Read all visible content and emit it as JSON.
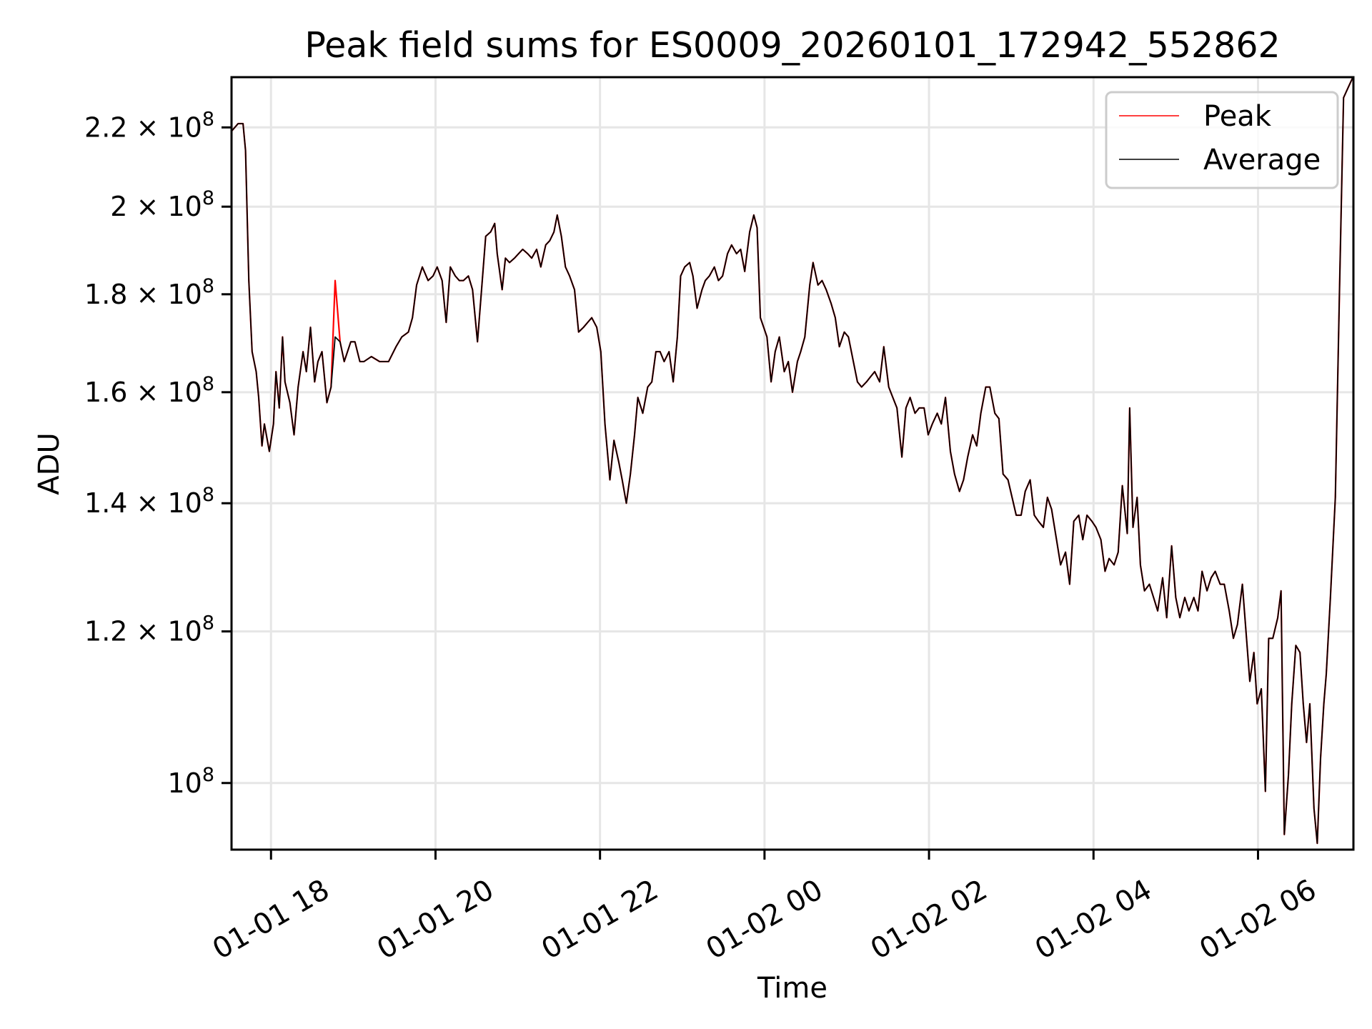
{
  "chart_data": {
    "type": "line",
    "title": "Peak field sums for ES0009_20260101_172942_552862",
    "xlabel": "Time",
    "ylabel": "ADU",
    "x_units": "hours since 01-01 00:00",
    "y_units": "1e8 ADU",
    "yscale": "log",
    "xlim": [
      17.52,
      31.16
    ],
    "ylim": [
      0.923,
      2.337
    ],
    "grid": true,
    "legend_position": "top-right",
    "xticks": [
      {
        "value": 18,
        "label": "01-01 18"
      },
      {
        "value": 20,
        "label": "01-01 20"
      },
      {
        "value": 22,
        "label": "01-01 22"
      },
      {
        "value": 24,
        "label": "01-02 00"
      },
      {
        "value": 26,
        "label": "01-02 02"
      },
      {
        "value": 28,
        "label": "01-02 04"
      },
      {
        "value": 30,
        "label": "01-02 06"
      }
    ],
    "yticks": [
      {
        "value": 1.0,
        "mantissa": "10",
        "exp": "8"
      },
      {
        "value": 1.2,
        "mantissa": "1.2 × 10",
        "exp": "8"
      },
      {
        "value": 1.4,
        "mantissa": "1.4 × 10",
        "exp": "8"
      },
      {
        "value": 1.6,
        "mantissa": "1.6 × 10",
        "exp": "8"
      },
      {
        "value": 1.8,
        "mantissa": "1.8 × 10",
        "exp": "8"
      },
      {
        "value": 2.0,
        "mantissa": "2 × 10",
        "exp": "8"
      },
      {
        "value": 2.2,
        "mantissa": "2.2 × 10",
        "exp": "8"
      }
    ],
    "x": [
      17.52,
      17.6,
      17.66,
      17.69,
      17.73,
      17.77,
      17.82,
      17.85,
      17.89,
      17.92,
      17.98,
      18.03,
      18.06,
      18.1,
      18.14,
      18.17,
      18.23,
      18.28,
      18.33,
      18.39,
      18.43,
      18.48,
      18.53,
      18.57,
      18.62,
      18.68,
      18.73,
      18.78,
      18.84,
      18.89,
      18.97,
      19.02,
      19.08,
      19.13,
      19.22,
      19.32,
      19.43,
      19.52,
      19.59,
      19.67,
      19.72,
      19.77,
      19.84,
      19.91,
      19.97,
      20.02,
      20.08,
      20.13,
      20.18,
      20.24,
      20.29,
      20.34,
      20.4,
      20.45,
      20.51,
      20.56,
      20.61,
      20.67,
      20.72,
      20.75,
      20.81,
      20.85,
      20.9,
      20.96,
      21.01,
      21.06,
      21.12,
      21.17,
      21.23,
      21.28,
      21.34,
      21.39,
      21.44,
      21.48,
      21.53,
      21.58,
      21.63,
      21.69,
      21.74,
      21.8,
      21.85,
      21.9,
      21.96,
      22.01,
      22.06,
      22.12,
      22.17,
      22.23,
      22.27,
      22.32,
      22.37,
      22.42,
      22.46,
      22.52,
      22.58,
      22.63,
      22.68,
      22.73,
      22.78,
      22.84,
      22.89,
      22.94,
      22.98,
      23.03,
      23.09,
      23.13,
      23.18,
      23.24,
      23.28,
      23.33,
      23.39,
      23.44,
      23.49,
      23.55,
      23.6,
      23.66,
      23.71,
      23.76,
      23.82,
      23.87,
      23.91,
      23.95,
      23.99,
      24.03,
      24.08,
      24.13,
      24.18,
      24.24,
      24.29,
      24.34,
      24.4,
      24.44,
      24.49,
      24.55,
      24.59,
      24.65,
      24.7,
      24.75,
      24.81,
      24.86,
      24.91,
      24.97,
      25.02,
      25.08,
      25.13,
      25.18,
      25.24,
      25.29,
      25.34,
      25.4,
      25.45,
      25.51,
      25.56,
      25.61,
      25.67,
      25.72,
      25.77,
      25.83,
      25.88,
      25.94,
      25.99,
      26.04,
      26.1,
      26.15,
      26.2,
      26.26,
      26.31,
      26.37,
      26.42,
      26.47,
      26.53,
      26.58,
      26.63,
      26.69,
      26.74,
      26.8,
      26.85,
      26.9,
      26.96,
      27.01,
      27.06,
      27.12,
      27.17,
      27.23,
      27.28,
      27.33,
      27.39,
      27.44,
      27.49,
      27.55,
      27.6,
      27.66,
      27.71,
      27.76,
      27.82,
      27.87,
      27.92,
      27.98,
      28.03,
      28.09,
      28.14,
      28.19,
      28.25,
      28.3,
      28.35,
      28.41,
      28.44,
      28.48,
      28.53,
      28.57,
      28.62,
      28.68,
      28.73,
      28.78,
      28.84,
      28.89,
      28.95,
      29.0,
      29.05,
      29.11,
      29.16,
      29.22,
      29.27,
      29.32,
      29.38,
      29.43,
      29.48,
      29.54,
      29.59,
      29.65,
      29.7,
      29.75,
      29.81,
      29.86,
      29.9,
      29.95,
      29.99,
      30.04,
      30.09,
      30.13,
      30.18,
      30.24,
      30.28,
      30.32,
      30.37,
      30.41,
      30.46,
      30.51,
      30.55,
      30.59,
      30.63,
      30.68,
      30.72,
      30.76,
      30.8,
      30.83,
      30.88,
      30.94,
      30.99,
      31.04,
      31.1,
      31.16
    ],
    "series": [
      {
        "name": "Peak",
        "color": "#ff0000",
        "values": [
          2.19,
          2.21,
          2.21,
          2.14,
          1.83,
          1.68,
          1.64,
          1.59,
          1.5,
          1.54,
          1.49,
          1.54,
          1.64,
          1.57,
          1.71,
          1.62,
          1.58,
          1.52,
          1.61,
          1.68,
          1.64,
          1.73,
          1.62,
          1.66,
          1.68,
          1.58,
          1.61,
          1.83,
          1.7,
          1.66,
          1.7,
          1.7,
          1.66,
          1.66,
          1.67,
          1.66,
          1.66,
          1.69,
          1.71,
          1.72,
          1.75,
          1.82,
          1.86,
          1.83,
          1.84,
          1.86,
          1.83,
          1.74,
          1.86,
          1.84,
          1.83,
          1.83,
          1.84,
          1.81,
          1.7,
          1.81,
          1.93,
          1.94,
          1.96,
          1.89,
          1.81,
          1.88,
          1.87,
          1.88,
          1.89,
          1.9,
          1.89,
          1.88,
          1.9,
          1.86,
          1.91,
          1.92,
          1.94,
          1.98,
          1.93,
          1.86,
          1.84,
          1.81,
          1.72,
          1.73,
          1.74,
          1.75,
          1.73,
          1.68,
          1.54,
          1.44,
          1.51,
          1.47,
          1.44,
          1.4,
          1.45,
          1.52,
          1.59,
          1.56,
          1.61,
          1.62,
          1.68,
          1.68,
          1.66,
          1.68,
          1.62,
          1.71,
          1.84,
          1.86,
          1.87,
          1.84,
          1.77,
          1.81,
          1.83,
          1.84,
          1.86,
          1.83,
          1.84,
          1.89,
          1.91,
          1.89,
          1.9,
          1.85,
          1.94,
          1.98,
          1.95,
          1.75,
          1.73,
          1.71,
          1.62,
          1.68,
          1.71,
          1.64,
          1.66,
          1.6,
          1.66,
          1.68,
          1.71,
          1.82,
          1.87,
          1.82,
          1.83,
          1.81,
          1.78,
          1.75,
          1.69,
          1.72,
          1.71,
          1.66,
          1.62,
          1.61,
          1.62,
          1.63,
          1.64,
          1.62,
          1.69,
          1.61,
          1.59,
          1.57,
          1.48,
          1.57,
          1.59,
          1.56,
          1.57,
          1.57,
          1.52,
          1.54,
          1.56,
          1.54,
          1.59,
          1.49,
          1.45,
          1.42,
          1.44,
          1.48,
          1.52,
          1.5,
          1.56,
          1.61,
          1.61,
          1.56,
          1.55,
          1.45,
          1.44,
          1.41,
          1.38,
          1.38,
          1.42,
          1.44,
          1.38,
          1.37,
          1.36,
          1.41,
          1.39,
          1.34,
          1.3,
          1.32,
          1.27,
          1.37,
          1.38,
          1.34,
          1.38,
          1.37,
          1.36,
          1.34,
          1.29,
          1.31,
          1.3,
          1.32,
          1.43,
          1.35,
          1.57,
          1.36,
          1.41,
          1.3,
          1.26,
          1.27,
          1.25,
          1.23,
          1.28,
          1.22,
          1.33,
          1.25,
          1.22,
          1.25,
          1.23,
          1.25,
          1.23,
          1.29,
          1.26,
          1.28,
          1.29,
          1.27,
          1.27,
          1.23,
          1.19,
          1.21,
          1.27,
          1.19,
          1.13,
          1.17,
          1.1,
          1.12,
          0.99,
          1.19,
          1.19,
          1.22,
          1.26,
          0.94,
          1.01,
          1.1,
          1.18,
          1.17,
          1.1,
          1.05,
          1.1,
          0.97,
          0.93,
          1.03,
          1.1,
          1.14,
          1.25,
          1.41,
          1.8,
          2.28,
          2.31,
          2.34
        ]
      },
      {
        "name": "Average",
        "color": "#000000",
        "values": [
          2.19,
          2.21,
          2.21,
          2.14,
          1.83,
          1.68,
          1.64,
          1.59,
          1.5,
          1.54,
          1.49,
          1.54,
          1.64,
          1.57,
          1.71,
          1.62,
          1.58,
          1.52,
          1.61,
          1.68,
          1.64,
          1.73,
          1.62,
          1.66,
          1.68,
          1.58,
          1.61,
          1.71,
          1.7,
          1.66,
          1.7,
          1.7,
          1.66,
          1.66,
          1.67,
          1.66,
          1.66,
          1.69,
          1.71,
          1.72,
          1.75,
          1.82,
          1.86,
          1.83,
          1.84,
          1.86,
          1.83,
          1.74,
          1.86,
          1.84,
          1.83,
          1.83,
          1.84,
          1.81,
          1.7,
          1.81,
          1.93,
          1.94,
          1.96,
          1.89,
          1.81,
          1.88,
          1.87,
          1.88,
          1.89,
          1.9,
          1.89,
          1.88,
          1.9,
          1.86,
          1.91,
          1.92,
          1.94,
          1.98,
          1.93,
          1.86,
          1.84,
          1.81,
          1.72,
          1.73,
          1.74,
          1.75,
          1.73,
          1.68,
          1.54,
          1.44,
          1.51,
          1.47,
          1.44,
          1.4,
          1.45,
          1.52,
          1.59,
          1.56,
          1.61,
          1.62,
          1.68,
          1.68,
          1.66,
          1.68,
          1.62,
          1.71,
          1.84,
          1.86,
          1.87,
          1.84,
          1.77,
          1.81,
          1.83,
          1.84,
          1.86,
          1.83,
          1.84,
          1.89,
          1.91,
          1.89,
          1.9,
          1.85,
          1.94,
          1.98,
          1.95,
          1.75,
          1.73,
          1.71,
          1.62,
          1.68,
          1.71,
          1.64,
          1.66,
          1.6,
          1.66,
          1.68,
          1.71,
          1.82,
          1.87,
          1.82,
          1.83,
          1.81,
          1.78,
          1.75,
          1.69,
          1.72,
          1.71,
          1.66,
          1.62,
          1.61,
          1.62,
          1.63,
          1.64,
          1.62,
          1.69,
          1.61,
          1.59,
          1.57,
          1.48,
          1.57,
          1.59,
          1.56,
          1.57,
          1.57,
          1.52,
          1.54,
          1.56,
          1.54,
          1.59,
          1.49,
          1.45,
          1.42,
          1.44,
          1.48,
          1.52,
          1.5,
          1.56,
          1.61,
          1.61,
          1.56,
          1.55,
          1.45,
          1.44,
          1.41,
          1.38,
          1.38,
          1.42,
          1.44,
          1.38,
          1.37,
          1.36,
          1.41,
          1.39,
          1.34,
          1.3,
          1.32,
          1.27,
          1.37,
          1.38,
          1.34,
          1.38,
          1.37,
          1.36,
          1.34,
          1.29,
          1.31,
          1.3,
          1.32,
          1.43,
          1.35,
          1.57,
          1.36,
          1.41,
          1.3,
          1.26,
          1.27,
          1.25,
          1.23,
          1.28,
          1.22,
          1.33,
          1.25,
          1.22,
          1.25,
          1.23,
          1.25,
          1.23,
          1.29,
          1.26,
          1.28,
          1.29,
          1.27,
          1.27,
          1.23,
          1.19,
          1.21,
          1.27,
          1.19,
          1.13,
          1.17,
          1.1,
          1.12,
          0.99,
          1.19,
          1.19,
          1.22,
          1.26,
          0.94,
          1.01,
          1.1,
          1.18,
          1.17,
          1.1,
          1.05,
          1.1,
          0.97,
          0.93,
          1.03,
          1.1,
          1.14,
          1.25,
          1.41,
          1.8,
          2.28,
          2.31,
          2.34
        ]
      }
    ]
  }
}
